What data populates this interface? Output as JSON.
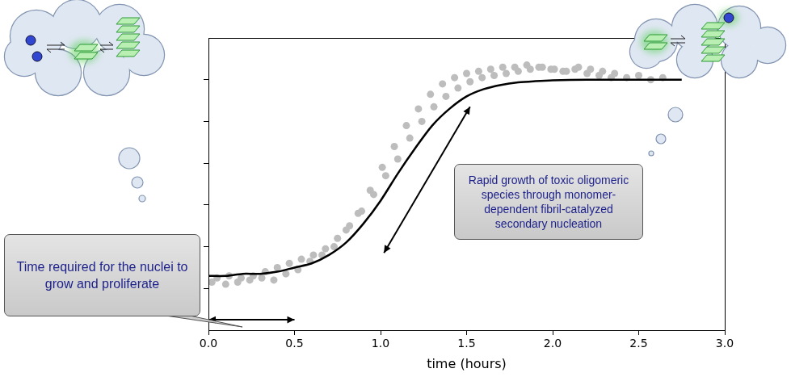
{
  "chart_data": {
    "type": "scatter",
    "x_label": "time (hours)",
    "xlim": [
      0,
      3
    ],
    "xticks": [
      {
        "value": 0,
        "label": "0.0"
      },
      0.5,
      {
        "value": 1,
        "label": "1.0"
      },
      1.5,
      {
        "value": 2,
        "label": "2.0"
      },
      2.5,
      {
        "value": 3,
        "label": "3.0"
      }
    ],
    "ylim": [
      -0.2,
      1.2
    ],
    "yticks": [
      0,
      0.2,
      0.4,
      0.6,
      0.8,
      1
    ],
    "tick_labels": "x",
    "grid": false,
    "series": [
      {
        "type": "scatter",
        "marker": "circle",
        "color": "#bdbdbd",
        "x": [
          0.02,
          0.1,
          0.17,
          0.24,
          0.31,
          0.38,
          0.45,
          0.52,
          0.59,
          0.66,
          0.73,
          0.8,
          0.87,
          0.94,
          1.01,
          1.08,
          1.15,
          1.22,
          1.29,
          1.36,
          1.43,
          1.5,
          1.57,
          1.64,
          1.71,
          1.78,
          1.85,
          1.92,
          1.99,
          2.06,
          2.13,
          2.2,
          2.27,
          2.34,
          0.05,
          0.12,
          0.19,
          0.26,
          0.33,
          0.4,
          0.47,
          0.54,
          0.61,
          0.68,
          0.75,
          0.82,
          0.89,
          0.96,
          1.03,
          1.1,
          1.17,
          1.24,
          1.31,
          1.38,
          1.45,
          1.52,
          1.59,
          1.66,
          1.73,
          1.8,
          1.87,
          1.94,
          2.01,
          2.08,
          2.15,
          2.22,
          2.29,
          2.36,
          2.43,
          2.5,
          2.57,
          2.64
        ],
        "values": [
          0.03,
          0.02,
          0.03,
          0.04,
          0.05,
          0.04,
          0.07,
          0.09,
          0.13,
          0.16,
          0.2,
          0.28,
          0.36,
          0.47,
          0.58,
          0.68,
          0.78,
          0.86,
          0.93,
          0.98,
          1.01,
          1.03,
          1.04,
          1.05,
          1.06,
          1.06,
          1.07,
          1.06,
          1.05,
          1.04,
          1.05,
          1.03,
          1.02,
          1.01,
          0.05,
          0.06,
          0.05,
          0.06,
          0.08,
          0.1,
          0.12,
          0.14,
          0.16,
          0.19,
          0.24,
          0.3,
          0.37,
          0.45,
          0.54,
          0.62,
          0.72,
          0.8,
          0.87,
          0.92,
          0.96,
          0.99,
          1.01,
          1.02,
          1.03,
          1.04,
          1.05,
          1.06,
          1.05,
          1.04,
          1.06,
          1.05,
          1.04,
          1.03,
          1.01,
          1.02,
          1.0,
          1.01
        ]
      },
      {
        "type": "line",
        "line_style": "solid",
        "color": "#000000",
        "x": [
          0,
          0.1,
          0.2,
          0.3,
          0.4,
          0.5,
          0.6,
          0.7,
          0.8,
          0.9,
          1.0,
          1.1,
          1.2,
          1.3,
          1.4,
          1.5,
          1.6,
          1.7,
          1.8,
          1.9,
          2.0,
          2.2,
          2.4,
          2.6,
          2.75
        ],
        "values": [
          0.06,
          0.06,
          0.07,
          0.07,
          0.08,
          0.1,
          0.12,
          0.16,
          0.22,
          0.31,
          0.42,
          0.55,
          0.67,
          0.78,
          0.86,
          0.92,
          0.955,
          0.975,
          0.987,
          0.993,
          0.997,
          1.0,
          1.0,
          1.0,
          1.0
        ]
      }
    ],
    "annotations": [
      {
        "text": "Time required for the nuclei to grow and proliferate",
        "arrow": [
          [
            0,
            -0.15
          ],
          [
            0.5,
            -0.15
          ]
        ]
      },
      {
        "text": "Rapid growth of toxic oligomeric species through monomer-dependent fibril-catalyzed secondary nucleation",
        "arrow": [
          [
            1.02,
            0.17
          ],
          [
            1.52,
            0.87
          ]
        ]
      }
    ]
  }
}
